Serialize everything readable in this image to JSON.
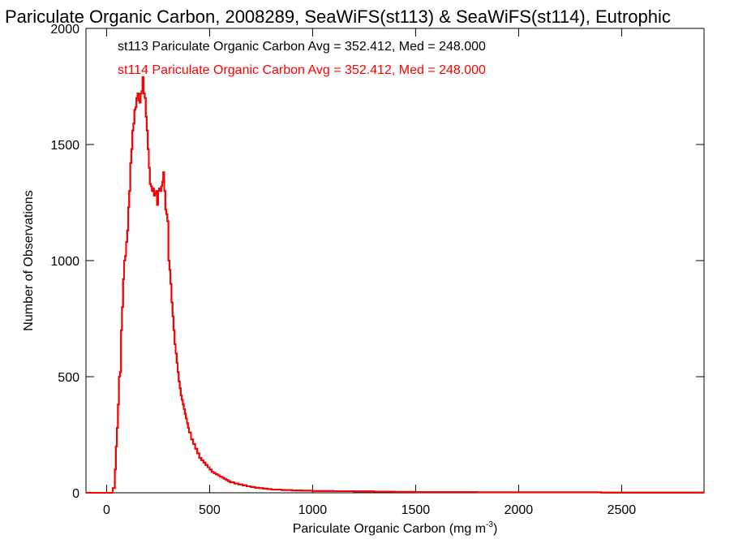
{
  "chart_data": {
    "type": "line",
    "title": "Pariculate Organic Carbon, 2008289, SeaWiFS(st113) & SeaWiFS(st114), Eutrophic",
    "xlabel": "Pariculate Organic Carbon (mg m",
    "xlabel_sup": "-3",
    "xlabel_end": ")",
    "ylabel": "Number of Observations",
    "xlim": [
      -100,
      2900
    ],
    "ylim": [
      0,
      2000
    ],
    "x_ticks": [
      0,
      500,
      1000,
      1500,
      2000,
      2500
    ],
    "y_ticks": [
      0,
      500,
      1000,
      1500,
      2000
    ],
    "step": "histogram",
    "series": [
      {
        "name": "st113 Pariculate Organic Carbon Avg = 352.412, Med = 248.000",
        "color": "#000000",
        "x": [
          -100,
          20,
          30,
          40,
          45,
          50,
          55,
          60,
          65,
          70,
          75,
          80,
          85,
          90,
          95,
          100,
          105,
          110,
          115,
          120,
          125,
          130,
          135,
          140,
          145,
          150,
          155,
          160,
          165,
          170,
          175,
          180,
          185,
          190,
          195,
          200,
          205,
          210,
          215,
          220,
          225,
          230,
          235,
          240,
          245,
          250,
          255,
          260,
          265,
          270,
          275,
          280,
          285,
          290,
          295,
          300,
          305,
          310,
          315,
          320,
          325,
          330,
          335,
          340,
          345,
          350,
          355,
          360,
          365,
          370,
          375,
          380,
          385,
          390,
          395,
          400,
          410,
          420,
          430,
          440,
          450,
          460,
          470,
          480,
          490,
          500,
          510,
          520,
          530,
          540,
          550,
          560,
          570,
          580,
          590,
          600,
          620,
          640,
          660,
          680,
          700,
          720,
          740,
          760,
          780,
          800,
          850,
          900,
          950,
          1000,
          1100,
          1200,
          1300,
          1400,
          1500,
          1600,
          1800,
          2000,
          2200,
          2400,
          2600,
          2800
        ],
        "y": [
          0,
          0,
          20,
          100,
          200,
          280,
          380,
          500,
          520,
          700,
          800,
          920,
          1000,
          1020,
          1080,
          1130,
          1230,
          1300,
          1420,
          1480,
          1560,
          1590,
          1650,
          1660,
          1700,
          1720,
          1690,
          1680,
          1720,
          1730,
          1790,
          1720,
          1700,
          1620,
          1560,
          1480,
          1400,
          1330,
          1320,
          1300,
          1310,
          1280,
          1290,
          1300,
          1240,
          1300,
          1310,
          1300,
          1320,
          1340,
          1380,
          1300,
          1220,
          1200,
          1170,
          1000,
          960,
          900,
          820,
          760,
          700,
          640,
          600,
          560,
          520,
          480,
          450,
          420,
          400,
          380,
          360,
          340,
          320,
          300,
          280,
          260,
          230,
          210,
          190,
          170,
          150,
          140,
          130,
          120,
          110,
          100,
          90,
          85,
          80,
          75,
          70,
          65,
          60,
          55,
          50,
          45,
          40,
          36,
          32,
          28,
          25,
          22,
          20,
          18,
          16,
          14,
          12,
          10,
          9,
          8,
          7,
          6,
          5,
          4,
          3,
          3,
          2,
          2,
          2,
          1,
          1,
          1
        ]
      },
      {
        "name": "st114 Pariculate Organic Carbon Avg = 352.412, Med = 248.000",
        "color": "#ff0000",
        "x": [
          -100,
          20,
          30,
          40,
          45,
          50,
          55,
          60,
          65,
          70,
          75,
          80,
          85,
          90,
          95,
          100,
          105,
          110,
          115,
          120,
          125,
          130,
          135,
          140,
          145,
          150,
          155,
          160,
          165,
          170,
          175,
          180,
          185,
          190,
          195,
          200,
          205,
          210,
          215,
          220,
          225,
          230,
          235,
          240,
          245,
          250,
          255,
          260,
          265,
          270,
          275,
          280,
          285,
          290,
          295,
          300,
          305,
          310,
          315,
          320,
          325,
          330,
          335,
          340,
          345,
          350,
          355,
          360,
          365,
          370,
          375,
          380,
          385,
          390,
          395,
          400,
          410,
          420,
          430,
          440,
          450,
          460,
          470,
          480,
          490,
          500,
          510,
          520,
          530,
          540,
          550,
          560,
          570,
          580,
          590,
          600,
          620,
          640,
          660,
          680,
          700,
          720,
          740,
          760,
          780,
          800,
          850,
          900,
          950,
          1000,
          1100,
          1200,
          1300,
          1400,
          1500,
          1600,
          1800,
          2000,
          2200,
          2400,
          2600,
          2800
        ],
        "y": [
          0,
          0,
          20,
          100,
          200,
          280,
          380,
          500,
          520,
          700,
          800,
          920,
          1000,
          1020,
          1080,
          1130,
          1230,
          1300,
          1420,
          1480,
          1560,
          1590,
          1650,
          1660,
          1700,
          1720,
          1690,
          1680,
          1720,
          1730,
          1790,
          1720,
          1700,
          1620,
          1560,
          1480,
          1400,
          1330,
          1320,
          1300,
          1310,
          1280,
          1290,
          1300,
          1240,
          1300,
          1310,
          1300,
          1320,
          1340,
          1380,
          1300,
          1220,
          1200,
          1170,
          1000,
          960,
          900,
          820,
          760,
          700,
          640,
          600,
          560,
          520,
          480,
          450,
          420,
          400,
          380,
          360,
          340,
          320,
          300,
          280,
          260,
          230,
          210,
          190,
          170,
          150,
          140,
          130,
          120,
          110,
          100,
          90,
          85,
          80,
          75,
          70,
          65,
          60,
          55,
          50,
          45,
          40,
          36,
          32,
          28,
          25,
          22,
          20,
          18,
          16,
          14,
          12,
          10,
          9,
          8,
          7,
          6,
          5,
          4,
          3,
          3,
          2,
          2,
          2,
          1,
          1,
          1
        ]
      }
    ]
  }
}
